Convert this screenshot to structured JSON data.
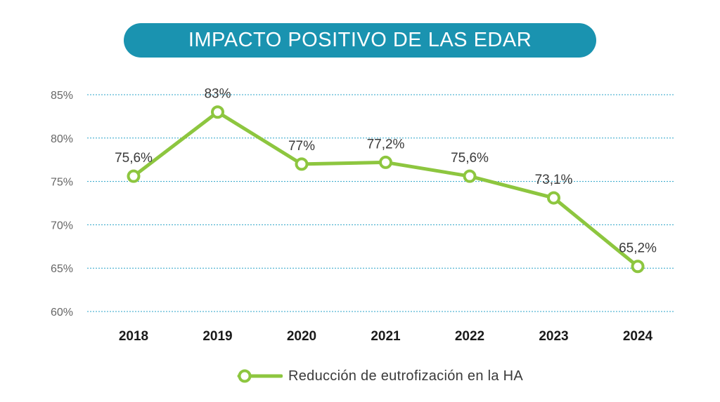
{
  "colors": {
    "banner": "#1a93b0",
    "line": "#8dc63f",
    "grid": "#29a3c8"
  },
  "chart_data": {
    "type": "line",
    "title": "IMPACTO POSITIVO DE LAS EDAR",
    "categories": [
      "2018",
      "2019",
      "2020",
      "2021",
      "2022",
      "2023",
      "2024"
    ],
    "series": [
      {
        "name": "Reducción de eutrofización en la HA",
        "values": [
          75.6,
          83,
          77,
          77.2,
          75.6,
          73.1,
          65.2
        ],
        "labels": [
          "75,6%",
          "83%",
          "77%",
          "77,2%",
          "75,6%",
          "73,1%",
          "65,2%"
        ]
      }
    ],
    "yticks": [
      85,
      80,
      75,
      70,
      65,
      60
    ],
    "ytick_labels": [
      "85%",
      "80%",
      "75%",
      "70%",
      "65%",
      "60%"
    ],
    "ylim": [
      60,
      85
    ],
    "grid": true,
    "legend_position": "bottom"
  }
}
